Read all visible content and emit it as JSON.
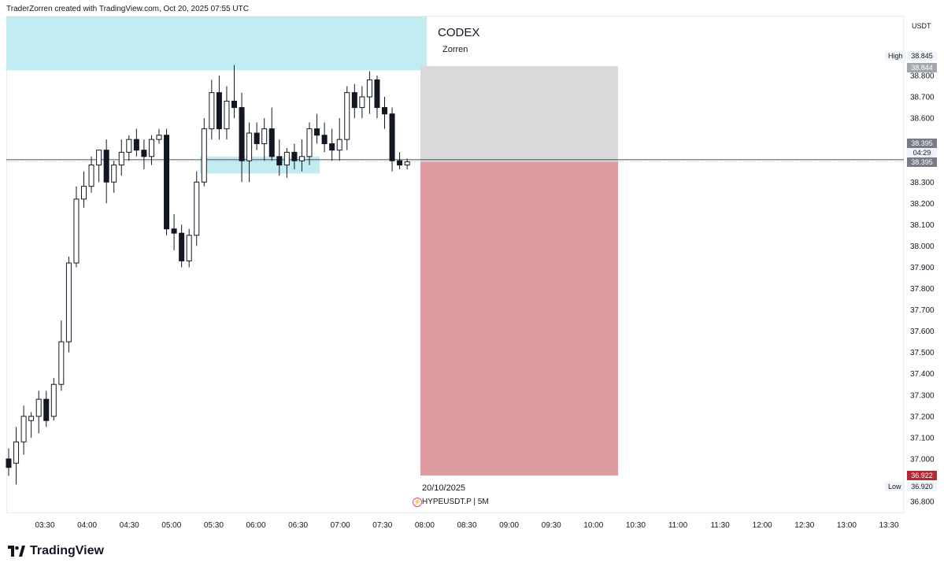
{
  "header": {
    "text": "TraderZorren created with TradingView.com, Oct 20, 2025 07:55 UTC"
  },
  "overlay": {
    "title": "CODEX",
    "subtitle": "Zorren"
  },
  "price_axis": {
    "currency": "USDT",
    "ticks": [
      "38.800",
      "38.700",
      "38.600",
      "38.300",
      "38.200",
      "38.100",
      "38.000",
      "37.900",
      "37.800",
      "37.700",
      "37.600",
      "37.500",
      "37.400",
      "37.300",
      "37.200",
      "37.100",
      "37.000",
      "36.800"
    ]
  },
  "price_tags": {
    "high_label": "High",
    "high_value": "38.845",
    "top_tp_value": "38.844",
    "current_value": "38.395",
    "countdown": "04:29",
    "entry_value": "38.395",
    "stop_value": "36.922",
    "low_label": "Low",
    "low_value": "36.920"
  },
  "time_axis": {
    "ticks": [
      "03:30",
      "04:00",
      "04:30",
      "05:00",
      "05:30",
      "06:00",
      "06:30",
      "07:00",
      "07:30",
      "08:00",
      "08:30",
      "09:00",
      "09:30",
      "10:00",
      "10:30",
      "11:00",
      "11:30",
      "12:00",
      "12:30",
      "13:00",
      "13:30"
    ]
  },
  "chart_info": {
    "date": "20/10/2025",
    "symbol": "HYPEUSDT.P",
    "interval": "5M"
  },
  "footer": {
    "brand": "TradingView"
  },
  "colors": {
    "supply_zone": "#c3ecf2",
    "demand_zone": "#c3ecf2",
    "take_profit_zone": "#d9d9d9",
    "stop_loss_zone": "#de9ca1",
    "stop_tag": "#b22833",
    "tag_gray": "#787b86"
  },
  "chart_data": {
    "type": "candlestick",
    "symbol": "HYPEUSDT.P",
    "interval": "5M",
    "ylim": [
      36.8,
      38.9
    ],
    "candles": [
      {
        "o": 37.0,
        "h": 37.05,
        "l": 36.92,
        "c": 36.96
      },
      {
        "o": 36.98,
        "h": 37.15,
        "l": 36.88,
        "c": 37.08
      },
      {
        "o": 37.08,
        "h": 37.25,
        "l": 37.02,
        "c": 37.2
      },
      {
        "o": 37.18,
        "h": 37.22,
        "l": 37.1,
        "c": 37.2
      },
      {
        "o": 37.2,
        "h": 37.32,
        "l": 37.12,
        "c": 37.28
      },
      {
        "o": 37.28,
        "h": 37.32,
        "l": 37.15,
        "c": 37.18
      },
      {
        "o": 37.2,
        "h": 37.38,
        "l": 37.18,
        "c": 37.35
      },
      {
        "o": 37.35,
        "h": 37.65,
        "l": 37.32,
        "c": 37.55
      },
      {
        "o": 37.55,
        "h": 37.95,
        "l": 37.5,
        "c": 37.92
      },
      {
        "o": 37.92,
        "h": 38.28,
        "l": 37.9,
        "c": 38.22
      },
      {
        "o": 38.22,
        "h": 38.35,
        "l": 38.18,
        "c": 38.28
      },
      {
        "o": 38.28,
        "h": 38.42,
        "l": 38.25,
        "c": 38.38
      },
      {
        "o": 38.38,
        "h": 38.45,
        "l": 38.3,
        "c": 38.45
      },
      {
        "o": 38.45,
        "h": 38.5,
        "l": 38.2,
        "c": 38.3
      },
      {
        "o": 38.3,
        "h": 38.4,
        "l": 38.25,
        "c": 38.38
      },
      {
        "o": 38.38,
        "h": 38.5,
        "l": 38.33,
        "c": 38.44
      },
      {
        "o": 38.44,
        "h": 38.52,
        "l": 38.4,
        "c": 38.5
      },
      {
        "o": 38.5,
        "h": 38.55,
        "l": 38.42,
        "c": 38.45
      },
      {
        "o": 38.45,
        "h": 38.5,
        "l": 38.36,
        "c": 38.42
      },
      {
        "o": 38.42,
        "h": 38.52,
        "l": 38.38,
        "c": 38.5
      },
      {
        "o": 38.5,
        "h": 38.55,
        "l": 38.48,
        "c": 38.52
      },
      {
        "o": 38.52,
        "h": 38.55,
        "l": 38.05,
        "c": 38.08
      },
      {
        "o": 38.08,
        "h": 38.15,
        "l": 37.98,
        "c": 38.06
      },
      {
        "o": 38.06,
        "h": 38.1,
        "l": 37.9,
        "c": 37.93
      },
      {
        "o": 37.93,
        "h": 38.08,
        "l": 37.9,
        "c": 38.05
      },
      {
        "o": 38.05,
        "h": 38.35,
        "l": 38.0,
        "c": 38.3
      },
      {
        "o": 38.3,
        "h": 38.6,
        "l": 38.28,
        "c": 38.55
      },
      {
        "o": 38.55,
        "h": 38.78,
        "l": 38.5,
        "c": 38.72
      },
      {
        "o": 38.72,
        "h": 38.8,
        "l": 38.5,
        "c": 38.55
      },
      {
        "o": 38.55,
        "h": 38.75,
        "l": 38.5,
        "c": 38.68
      },
      {
        "o": 38.68,
        "h": 38.85,
        "l": 38.6,
        "c": 38.65
      },
      {
        "o": 38.65,
        "h": 38.72,
        "l": 38.3,
        "c": 38.4
      },
      {
        "o": 38.4,
        "h": 38.58,
        "l": 38.3,
        "c": 38.53
      },
      {
        "o": 38.53,
        "h": 38.58,
        "l": 38.45,
        "c": 38.48
      },
      {
        "o": 38.48,
        "h": 38.6,
        "l": 38.4,
        "c": 38.55
      },
      {
        "o": 38.55,
        "h": 38.65,
        "l": 38.4,
        "c": 38.42
      },
      {
        "o": 38.42,
        "h": 38.5,
        "l": 38.33,
        "c": 38.38
      },
      {
        "o": 38.38,
        "h": 38.46,
        "l": 38.32,
        "c": 38.44
      },
      {
        "o": 38.44,
        "h": 38.48,
        "l": 38.36,
        "c": 38.4
      },
      {
        "o": 38.4,
        "h": 38.5,
        "l": 38.35,
        "c": 38.42
      },
      {
        "o": 38.42,
        "h": 38.58,
        "l": 38.38,
        "c": 38.55
      },
      {
        "o": 38.55,
        "h": 38.62,
        "l": 38.48,
        "c": 38.52
      },
      {
        "o": 38.52,
        "h": 38.58,
        "l": 38.44,
        "c": 38.48
      },
      {
        "o": 38.48,
        "h": 38.55,
        "l": 38.4,
        "c": 38.45
      },
      {
        "o": 38.45,
        "h": 38.6,
        "l": 38.4,
        "c": 38.5
      },
      {
        "o": 38.5,
        "h": 38.75,
        "l": 38.45,
        "c": 38.72
      },
      {
        "o": 38.72,
        "h": 38.76,
        "l": 38.6,
        "c": 38.65
      },
      {
        "o": 38.65,
        "h": 38.75,
        "l": 38.6,
        "c": 38.7
      },
      {
        "o": 38.7,
        "h": 38.82,
        "l": 38.62,
        "c": 38.78
      },
      {
        "o": 38.78,
        "h": 38.8,
        "l": 38.6,
        "c": 38.65
      },
      {
        "o": 38.65,
        "h": 38.7,
        "l": 38.55,
        "c": 38.62
      },
      {
        "o": 38.62,
        "h": 38.65,
        "l": 38.35,
        "c": 38.4
      },
      {
        "o": 38.4,
        "h": 38.44,
        "l": 38.36,
        "c": 38.38
      },
      {
        "o": 38.38,
        "h": 38.41,
        "l": 38.36,
        "c": 38.395
      }
    ]
  }
}
